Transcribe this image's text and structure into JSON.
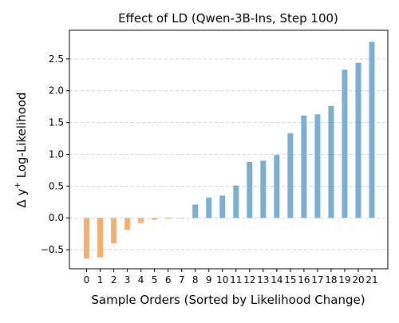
{
  "chart_data": {
    "type": "bar",
    "title": "Effect of LD (Qwen-3B-Ins, Step 100)",
    "xlabel": "Sample Orders (Sorted by Likelihood Change)",
    "ylabel_prefix": "Δ y",
    "ylabel_superscript": "+",
    "ylabel_suffix": " Log-Likelihood",
    "categories": [
      "0",
      "1",
      "2",
      "3",
      "4",
      "5",
      "6",
      "7",
      "8",
      "9",
      "10",
      "11",
      "12",
      "13",
      "14",
      "15",
      "16",
      "17",
      "18",
      "19",
      "20",
      "21"
    ],
    "values": [
      -0.64,
      -0.62,
      -0.4,
      -0.19,
      -0.08,
      -0.03,
      -0.015,
      -0.005,
      0.21,
      0.32,
      0.35,
      0.51,
      0.88,
      0.9,
      0.99,
      1.33,
      1.61,
      1.63,
      1.76,
      2.33,
      2.44,
      2.77
    ],
    "ylim": [
      -0.8,
      2.95
    ],
    "yticks": [
      -0.5,
      0.0,
      0.5,
      1.0,
      1.5,
      2.0,
      2.5
    ],
    "ytick_labels": [
      "−0.5",
      "0.0",
      "0.5",
      "1.0",
      "1.5",
      "2.0",
      "2.5"
    ],
    "grid": "horizontal dashed",
    "colors": {
      "negative": "#f5b070",
      "positive": "#7aafd1",
      "grid": "#c8c8c8"
    }
  }
}
